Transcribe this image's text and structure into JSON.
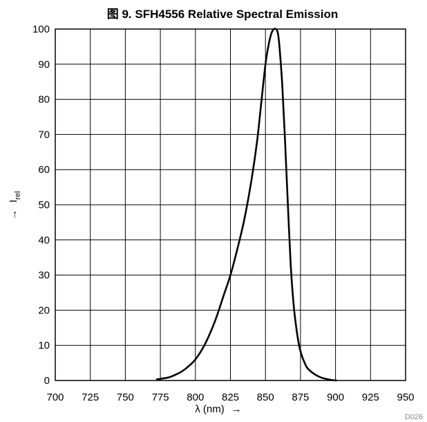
{
  "chart_data": {
    "type": "line",
    "title": "图 9. SFH4556 Relative Spectral Emission",
    "xlabel": "λ (nm)",
    "xlabel_arrow": "→",
    "ylabel_arrow": "→",
    "ylabel_main": "I",
    "ylabel_sub": "rel",
    "xlim": [
      700,
      950
    ],
    "ylim": [
      0,
      100
    ],
    "x_ticks": [
      700,
      725,
      750,
      775,
      800,
      825,
      850,
      875,
      900,
      925,
      950
    ],
    "y_ticks": [
      0,
      10,
      20,
      30,
      40,
      50,
      60,
      70,
      80,
      90,
      100
    ],
    "grid": true,
    "series": [
      {
        "name": "",
        "x": [
          772,
          780,
          785,
          790,
          795,
          800,
          805,
          810,
          815,
          820,
          825,
          830,
          835,
          840,
          844,
          847,
          850,
          852,
          854,
          856,
          858,
          859,
          860,
          862,
          864,
          866,
          868,
          870,
          872,
          874,
          876,
          878,
          880,
          885,
          890,
          895,
          898,
          901
        ],
        "y": [
          0.3,
          0.8,
          1.5,
          2.5,
          4,
          6,
          9,
          13,
          18,
          24,
          30,
          37.5,
          46,
          57,
          68,
          79,
          90,
          95,
          98.5,
          100,
          99.8,
          98.5,
          95,
          84,
          68,
          50,
          33,
          22,
          15,
          10,
          7,
          5,
          3.5,
          1.8,
          0.8,
          0.3,
          0.1,
          0
        ]
      }
    ],
    "colors": {
      "line": "#000000",
      "grid": "#000000",
      "background": "#ffffff"
    }
  },
  "footer_code": "D026"
}
